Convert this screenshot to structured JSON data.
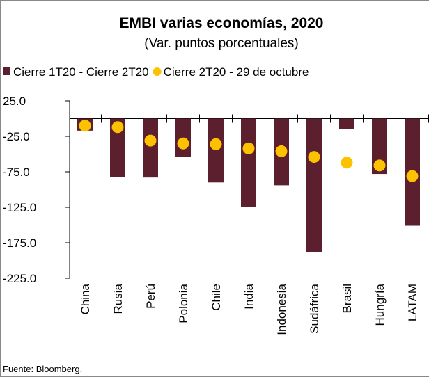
{
  "chart_data": {
    "type": "bar",
    "title": "EMBI varias economías, 2020",
    "subtitle": "(Var. puntos porcentuales)",
    "source": "Fuente: Bloomberg.",
    "categories": [
      "China",
      "Rusia",
      "Perú",
      "Polonia",
      "Chile",
      "India",
      "Indonesia",
      "Sudáfrica",
      "Brasil",
      "Hungría",
      "LATAM"
    ],
    "series": [
      {
        "name": "Cierre 1T20 - Cierre 2T20",
        "type": "bar",
        "color": "#5c1f2e",
        "values": [
          -17,
          -82,
          -83,
          -54,
          -90,
          -124,
          -94,
          -188,
          -15,
          -78,
          -151
        ]
      },
      {
        "name": "Cierre 2T20 - 29 de octubre",
        "type": "scatter",
        "color": "#fcc200",
        "values": [
          -10,
          -12,
          -31,
          -35,
          -36,
          -42,
          -46,
          -54,
          -62,
          -66,
          -81
        ]
      }
    ],
    "ylim": [
      -225,
      25
    ],
    "yticks": [
      {
        "value": 25,
        "label": "25.0"
      },
      {
        "value": -25,
        "label": "-25.0"
      },
      {
        "value": -75,
        "label": "-75.0"
      },
      {
        "value": -125,
        "label": "-125.0"
      },
      {
        "value": -175,
        "label": "-175.0"
      },
      {
        "value": -225,
        "label": "-225.0"
      }
    ],
    "legend": "top"
  }
}
